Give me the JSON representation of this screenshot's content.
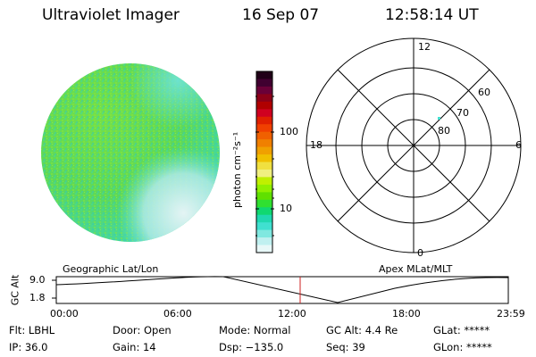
{
  "header": {
    "instrument": "Ultraviolet Imager",
    "date": "16 Sep 07",
    "time": "12:58:14 UT"
  },
  "colorbar": {
    "unit_label": "photon cm⁻²s⁻¹",
    "tick_labels": [
      "100",
      "10"
    ],
    "colors": [
      "#200018",
      "#400030",
      "#6a0038",
      "#8c0018",
      "#b00000",
      "#d00020",
      "#e02000",
      "#f04000",
      "#f06000",
      "#f08000",
      "#f0a000",
      "#f0c000",
      "#f0e040",
      "#f0f080",
      "#c0f000",
      "#90f000",
      "#60e000",
      "#30e030",
      "#10d870",
      "#20d8b0",
      "#40e0d0",
      "#80e8e0",
      "#c0f0f0",
      "#e8f8f8"
    ]
  },
  "polar_plot": {
    "mlt_labels": {
      "top": "12",
      "left": "18",
      "right": "6",
      "bottom": "0"
    },
    "lat_labels": [
      "60",
      "70",
      "80"
    ]
  },
  "map_labels": {
    "left": "Geographic Lat/Lon",
    "right": "Apex MLat/MLT"
  },
  "timeline": {
    "ylabel": "GC Alt",
    "ymax_label": "9.0",
    "ymin_label": "1.8",
    "x_ticks": [
      "00:00",
      "06:00",
      "12:00",
      "18:00",
      "23:59"
    ]
  },
  "info": {
    "filter": "Flt: LBHL",
    "ip": "IP: 36.0",
    "door": "Door: Open",
    "gain": "Gain: 14",
    "mode": "Mode: Normal",
    "dsp": "Dsp: −135.0",
    "gc_alt": "GC Alt: 4.4 Re",
    "seq": "Seq: 39",
    "glat": "GLat: *****",
    "glon": "GLon: *****"
  },
  "colors": {
    "image_main": "#66dd44",
    "image_cyan": "#44ddcc",
    "image_pale": "#d8f0f0",
    "marker": "#cc2222"
  }
}
